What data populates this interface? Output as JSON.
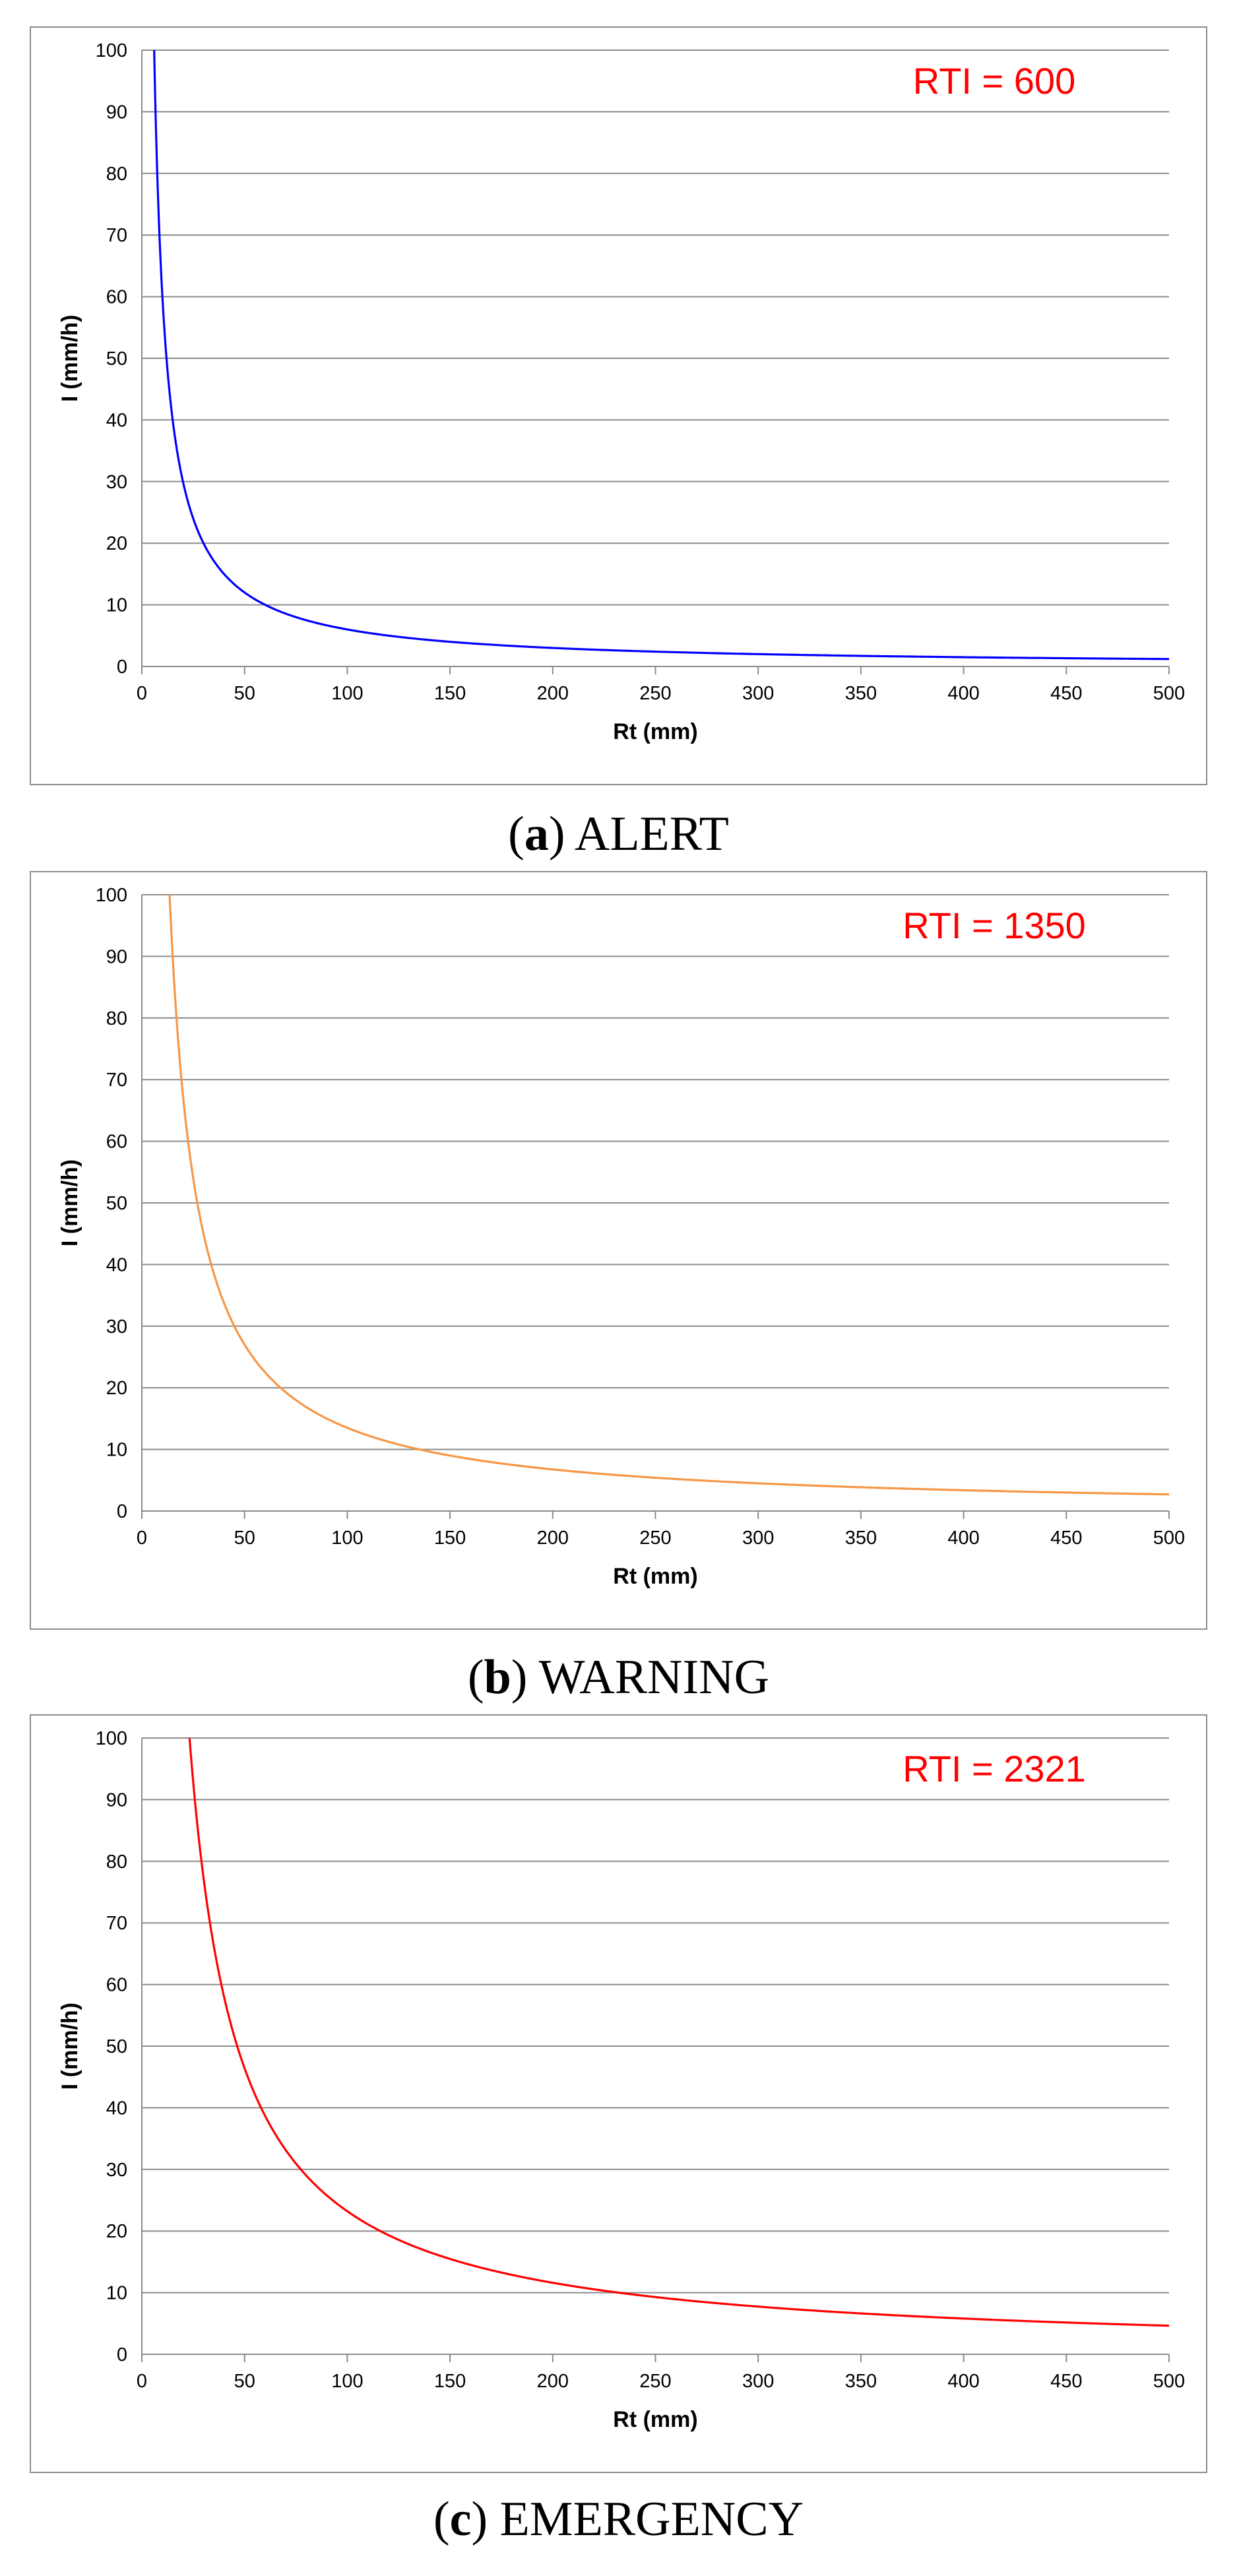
{
  "colors": {
    "grid": "#8c8c8c",
    "axis_text": "#000000",
    "annotation": "#ff0000"
  },
  "chart_data": [
    {
      "type": "line",
      "caption_letter": "a",
      "caption_text": "ALERT",
      "annotation": "RTI = 600",
      "rti": 600,
      "xlabel": "Rt (mm)",
      "ylabel": "I (mm/h)",
      "xlim": [
        0,
        500
      ],
      "ylim": [
        0,
        100
      ],
      "xticks": [
        "0",
        "50",
        "100",
        "150",
        "200",
        "250",
        "300",
        "350",
        "400",
        "450",
        "500"
      ],
      "yticks": [
        "0",
        "10",
        "20",
        "30",
        "40",
        "50",
        "60",
        "70",
        "80",
        "90",
        "100"
      ],
      "grid": true,
      "legend": "none",
      "series": [
        {
          "color": "#0000ff",
          "x_start": 6,
          "x_end": 500,
          "x": [
            6,
            10,
            20,
            30,
            40,
            50,
            60,
            80,
            100,
            150,
            200,
            250,
            300,
            350,
            400,
            450,
            500
          ],
          "y": [
            100,
            60,
            30,
            20,
            15,
            12,
            10,
            7.5,
            6,
            4,
            3,
            2.4,
            2,
            1.7,
            1.5,
            1.3,
            1.2
          ]
        }
      ]
    },
    {
      "type": "line",
      "caption_letter": "b",
      "caption_text": "WARNING",
      "annotation": "RTI = 1350",
      "rti": 1350,
      "xlabel": "Rt (mm)",
      "ylabel": "I (mm/h)",
      "xlim": [
        0,
        500
      ],
      "ylim": [
        0,
        100
      ],
      "xticks": [
        "0",
        "50",
        "100",
        "150",
        "200",
        "250",
        "300",
        "350",
        "400",
        "450",
        "500"
      ],
      "yticks": [
        "0",
        "10",
        "20",
        "30",
        "40",
        "50",
        "60",
        "70",
        "80",
        "90",
        "100"
      ],
      "grid": true,
      "legend": "none",
      "series": [
        {
          "color": "#f79646",
          "x_start": 13.5,
          "x_end": 500,
          "x": [
            13.5,
            20,
            30,
            40,
            50,
            60,
            80,
            100,
            150,
            200,
            250,
            300,
            350,
            400,
            450,
            500
          ],
          "y": [
            100,
            67.5,
            45,
            33.8,
            27,
            22.5,
            16.9,
            13.5,
            9,
            6.8,
            5.4,
            4.5,
            3.9,
            3.4,
            3,
            2.7
          ]
        }
      ]
    },
    {
      "type": "line",
      "caption_letter": "c",
      "caption_text": "EMERGENCY",
      "annotation": "RTI = 2321",
      "rti": 2321,
      "xlabel": "Rt (mm)",
      "ylabel": "I (mm/h)",
      "xlim": [
        0,
        500
      ],
      "ylim": [
        0,
        100
      ],
      "xticks": [
        "0",
        "50",
        "100",
        "150",
        "200",
        "250",
        "300",
        "350",
        "400",
        "450",
        "500"
      ],
      "yticks": [
        "0",
        "10",
        "20",
        "30",
        "40",
        "50",
        "60",
        "70",
        "80",
        "90",
        "100"
      ],
      "grid": true,
      "legend": "none",
      "series": [
        {
          "color": "#ff0000",
          "x_start": 23.2,
          "x_end": 500,
          "x": [
            23.2,
            30,
            40,
            50,
            60,
            80,
            100,
            150,
            200,
            250,
            300,
            350,
            400,
            450,
            500
          ],
          "y": [
            100,
            77.4,
            58,
            46.4,
            38.7,
            29,
            23.2,
            15.5,
            11.6,
            9.3,
            7.7,
            6.6,
            5.8,
            5.2,
            4.6
          ]
        }
      ]
    }
  ]
}
